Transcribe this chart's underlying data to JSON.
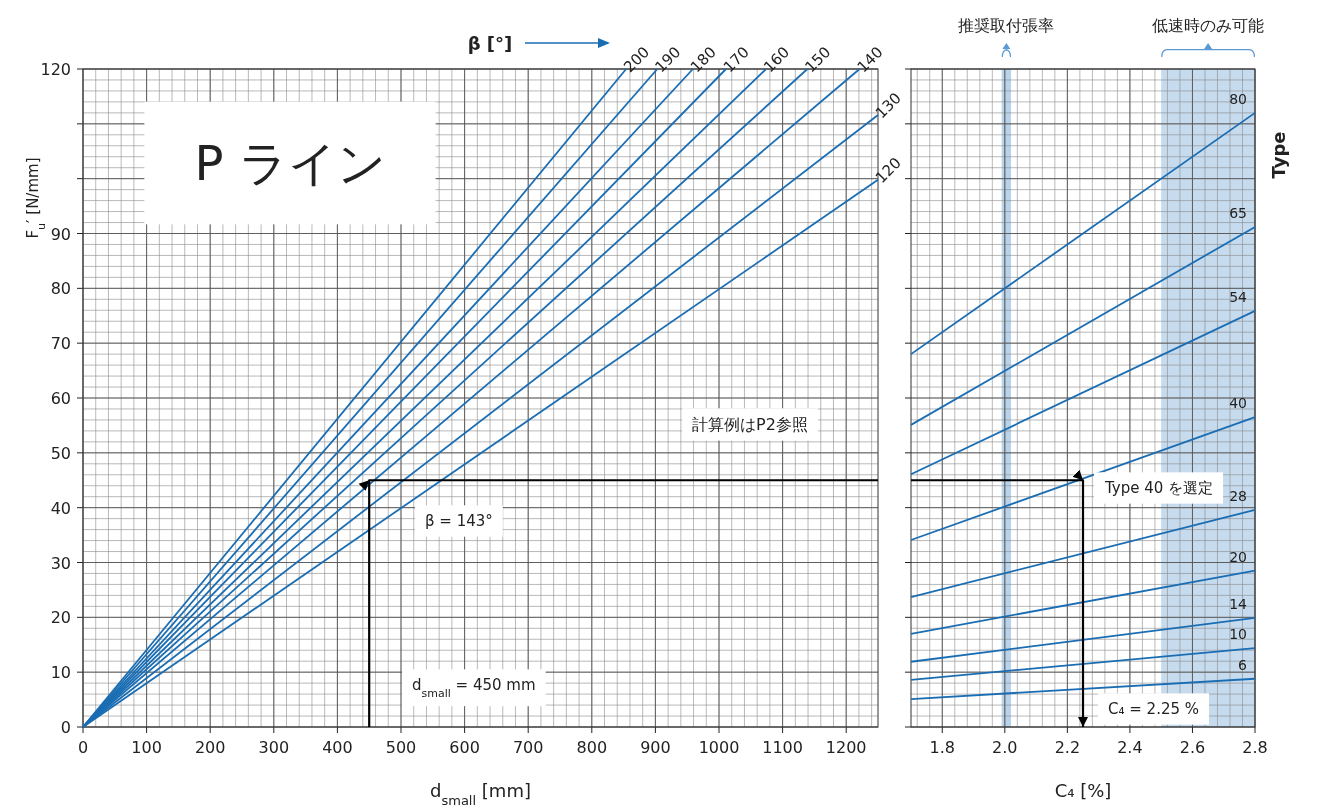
{
  "chart_data": [
    {
      "type": "line",
      "legend_title": "β [°]",
      "xlabel": "d$_{small}$ [mm]",
      "ylabel": "F$_{u}$′ [N/mm]",
      "xlim": [
        0,
        1250
      ],
      "ylim": [
        0,
        120
      ],
      "xticks": [
        0,
        100,
        200,
        300,
        400,
        500,
        600,
        700,
        800,
        900,
        1000,
        1100,
        1200
      ],
      "yticks": [
        0,
        10,
        20,
        30,
        40,
        50,
        60,
        70,
        80,
        90,
        {
          "value": 100,
          "label": null
        },
        {
          "value": 110,
          "label": null
        },
        120
      ],
      "grid": true,
      "legend": "top",
      "annotations": [
        "P ライン",
        "計算例はP2参照",
        "d$_{small}$ = 450 mm",
        "β = 143°"
      ],
      "series": [
        {
          "name": "200",
          "color": "#1a6db3",
          "x": [
            0,
            854
          ],
          "values": [
            0,
            120
          ]
        },
        {
          "name": "190",
          "color": "#1a6db3",
          "x": [
            0,
            903
          ],
          "values": [
            0,
            120
          ]
        },
        {
          "name": "180",
          "color": "#1a6db3",
          "x": [
            0,
            959
          ],
          "values": [
            0,
            120
          ]
        },
        {
          "name": "170",
          "color": "#1a6db3",
          "x": [
            0,
            1011
          ],
          "values": [
            0,
            120
          ]
        },
        {
          "name": "160",
          "color": "#1a6db3",
          "x": [
            0,
            1074
          ],
          "values": [
            0,
            120
          ]
        },
        {
          "name": "150",
          "color": "#1a6db3",
          "x": [
            0,
            1139
          ],
          "values": [
            0,
            120
          ]
        },
        {
          "name": "140",
          "color": "#1a6db3",
          "x": [
            0,
            1221
          ],
          "values": [
            0,
            120
          ]
        },
        {
          "name": "130",
          "color": "#1a6db3",
          "x": [
            0,
            1250
          ],
          "values": [
            0,
            111.6
          ]
        },
        {
          "name": "120",
          "color": "#1a6db3",
          "x": [
            0,
            1250
          ],
          "values": [
            0,
            99.8
          ]
        },
        {
          "color": "#000000",
          "x": [
            450,
            450,
            1250
          ],
          "values": [
            0,
            45,
            45
          ]
        }
      ]
    },
    {
      "type": "line",
      "legend_title": "Type",
      "xlabel": "C₄ [%]",
      "xlim": [
        1.7,
        2.8
      ],
      "ylim": [
        0,
        120
      ],
      "yticks": [
        {
          "value": 0,
          "label": null
        },
        {
          "value": 10,
          "label": null
        },
        {
          "value": 20,
          "label": null
        },
        {
          "value": 30,
          "label": null
        },
        {
          "value": 40,
          "label": null
        },
        {
          "value": 50,
          "label": null
        },
        {
          "value": 60,
          "label": null
        },
        {
          "value": 70,
          "label": null
        },
        {
          "value": 80,
          "label": null
        },
        {
          "value": 90,
          "label": null
        },
        {
          "value": 100,
          "label": null
        },
        {
          "value": 110,
          "label": null
        },
        {
          "value": 120,
          "label": null
        }
      ],
      "xticks": [
        1.8,
        {
          "value": 2,
          "label": "2.0"
        },
        2.2,
        2.4,
        2.6,
        2.8
      ],
      "tick_labels": "x",
      "grid": true,
      "legend": "right",
      "bands": [
        {
          "axis": "x",
          "from": 1.99,
          "to": 2.02,
          "label": "推奨取付張率",
          "color": "#b9d3ea"
        },
        {
          "axis": "x",
          "from": 2.5,
          "to": 2.8,
          "label": "低速時のみ可能",
          "color": "#c6dbee"
        }
      ],
      "annotations": [
        "Type 40 を選定",
        "C₄ = 2.25 %"
      ],
      "series": [
        {
          "name": "80",
          "color": "#1a6db3",
          "x": [
            1.7,
            2.8
          ],
          "values": [
            68,
            112
          ]
        },
        {
          "name": "65",
          "color": "#1a6db3",
          "x": [
            1.7,
            2.8
          ],
          "values": [
            55.1,
            91.2
          ]
        },
        {
          "name": "54",
          "color": "#1a6db3",
          "x": [
            1.7,
            2.8
          ],
          "values": [
            46.1,
            75.9
          ]
        },
        {
          "name": "40",
          "color": "#1a6db3",
          "x": [
            1.7,
            2.8
          ],
          "values": [
            34.1,
            56.5
          ]
        },
        {
          "name": "28",
          "color": "#1a6db3",
          "x": [
            1.7,
            2.8
          ],
          "values": [
            23.7,
            39.6
          ]
        },
        {
          "name": "20",
          "color": "#1a6db3",
          "x": [
            1.7,
            2.8
          ],
          "values": [
            17,
            28.5
          ]
        },
        {
          "name": "14",
          "color": "#1a6db3",
          "x": [
            1.7,
            2.8
          ],
          "values": [
            11.9,
            19.9
          ]
        },
        {
          "name": "10",
          "color": "#1a6db3",
          "x": [
            1.7,
            2.8
          ],
          "values": [
            8.6,
            14.4
          ]
        },
        {
          "name": "6",
          "color": "#1a6db3",
          "x": [
            1.7,
            2.8
          ],
          "values": [
            5.1,
            8.8
          ]
        },
        {
          "color": "#000000",
          "x": [
            1.7,
            2.25,
            2.25
          ],
          "values": [
            45,
            45,
            0
          ]
        }
      ]
    }
  ]
}
